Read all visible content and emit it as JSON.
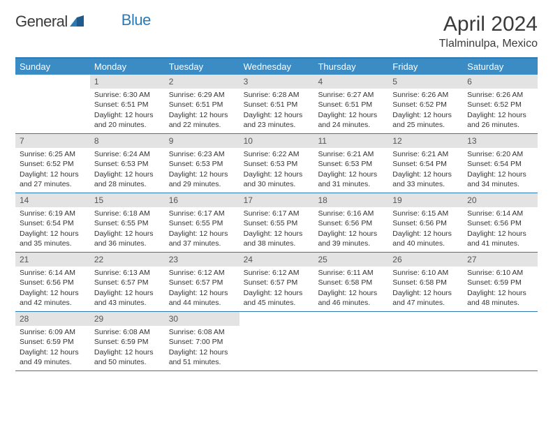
{
  "logo": {
    "word1": "General",
    "word2": "Blue"
  },
  "title": "April 2024",
  "location": "Tlalminulpa, Mexico",
  "colors": {
    "header_bg": "#3b8bc5",
    "border": "#2a7ab8",
    "daynum_bg": "#e3e3e3",
    "text": "#333333",
    "title": "#3a3a3a"
  },
  "dayNames": [
    "Sunday",
    "Monday",
    "Tuesday",
    "Wednesday",
    "Thursday",
    "Friday",
    "Saturday"
  ],
  "weeks": [
    [
      {
        "n": "",
        "sunrise": "",
        "sunset": "",
        "daylight": ""
      },
      {
        "n": "1",
        "sunrise": "Sunrise: 6:30 AM",
        "sunset": "Sunset: 6:51 PM",
        "daylight": "Daylight: 12 hours and 20 minutes."
      },
      {
        "n": "2",
        "sunrise": "Sunrise: 6:29 AM",
        "sunset": "Sunset: 6:51 PM",
        "daylight": "Daylight: 12 hours and 22 minutes."
      },
      {
        "n": "3",
        "sunrise": "Sunrise: 6:28 AM",
        "sunset": "Sunset: 6:51 PM",
        "daylight": "Daylight: 12 hours and 23 minutes."
      },
      {
        "n": "4",
        "sunrise": "Sunrise: 6:27 AM",
        "sunset": "Sunset: 6:51 PM",
        "daylight": "Daylight: 12 hours and 24 minutes."
      },
      {
        "n": "5",
        "sunrise": "Sunrise: 6:26 AM",
        "sunset": "Sunset: 6:52 PM",
        "daylight": "Daylight: 12 hours and 25 minutes."
      },
      {
        "n": "6",
        "sunrise": "Sunrise: 6:26 AM",
        "sunset": "Sunset: 6:52 PM",
        "daylight": "Daylight: 12 hours and 26 minutes."
      }
    ],
    [
      {
        "n": "7",
        "sunrise": "Sunrise: 6:25 AM",
        "sunset": "Sunset: 6:52 PM",
        "daylight": "Daylight: 12 hours and 27 minutes."
      },
      {
        "n": "8",
        "sunrise": "Sunrise: 6:24 AM",
        "sunset": "Sunset: 6:53 PM",
        "daylight": "Daylight: 12 hours and 28 minutes."
      },
      {
        "n": "9",
        "sunrise": "Sunrise: 6:23 AM",
        "sunset": "Sunset: 6:53 PM",
        "daylight": "Daylight: 12 hours and 29 minutes."
      },
      {
        "n": "10",
        "sunrise": "Sunrise: 6:22 AM",
        "sunset": "Sunset: 6:53 PM",
        "daylight": "Daylight: 12 hours and 30 minutes."
      },
      {
        "n": "11",
        "sunrise": "Sunrise: 6:21 AM",
        "sunset": "Sunset: 6:53 PM",
        "daylight": "Daylight: 12 hours and 31 minutes."
      },
      {
        "n": "12",
        "sunrise": "Sunrise: 6:21 AM",
        "sunset": "Sunset: 6:54 PM",
        "daylight": "Daylight: 12 hours and 33 minutes."
      },
      {
        "n": "13",
        "sunrise": "Sunrise: 6:20 AM",
        "sunset": "Sunset: 6:54 PM",
        "daylight": "Daylight: 12 hours and 34 minutes."
      }
    ],
    [
      {
        "n": "14",
        "sunrise": "Sunrise: 6:19 AM",
        "sunset": "Sunset: 6:54 PM",
        "daylight": "Daylight: 12 hours and 35 minutes."
      },
      {
        "n": "15",
        "sunrise": "Sunrise: 6:18 AM",
        "sunset": "Sunset: 6:55 PM",
        "daylight": "Daylight: 12 hours and 36 minutes."
      },
      {
        "n": "16",
        "sunrise": "Sunrise: 6:17 AM",
        "sunset": "Sunset: 6:55 PM",
        "daylight": "Daylight: 12 hours and 37 minutes."
      },
      {
        "n": "17",
        "sunrise": "Sunrise: 6:17 AM",
        "sunset": "Sunset: 6:55 PM",
        "daylight": "Daylight: 12 hours and 38 minutes."
      },
      {
        "n": "18",
        "sunrise": "Sunrise: 6:16 AM",
        "sunset": "Sunset: 6:56 PM",
        "daylight": "Daylight: 12 hours and 39 minutes."
      },
      {
        "n": "19",
        "sunrise": "Sunrise: 6:15 AM",
        "sunset": "Sunset: 6:56 PM",
        "daylight": "Daylight: 12 hours and 40 minutes."
      },
      {
        "n": "20",
        "sunrise": "Sunrise: 6:14 AM",
        "sunset": "Sunset: 6:56 PM",
        "daylight": "Daylight: 12 hours and 41 minutes."
      }
    ],
    [
      {
        "n": "21",
        "sunrise": "Sunrise: 6:14 AM",
        "sunset": "Sunset: 6:56 PM",
        "daylight": "Daylight: 12 hours and 42 minutes."
      },
      {
        "n": "22",
        "sunrise": "Sunrise: 6:13 AM",
        "sunset": "Sunset: 6:57 PM",
        "daylight": "Daylight: 12 hours and 43 minutes."
      },
      {
        "n": "23",
        "sunrise": "Sunrise: 6:12 AM",
        "sunset": "Sunset: 6:57 PM",
        "daylight": "Daylight: 12 hours and 44 minutes."
      },
      {
        "n": "24",
        "sunrise": "Sunrise: 6:12 AM",
        "sunset": "Sunset: 6:57 PM",
        "daylight": "Daylight: 12 hours and 45 minutes."
      },
      {
        "n": "25",
        "sunrise": "Sunrise: 6:11 AM",
        "sunset": "Sunset: 6:58 PM",
        "daylight": "Daylight: 12 hours and 46 minutes."
      },
      {
        "n": "26",
        "sunrise": "Sunrise: 6:10 AM",
        "sunset": "Sunset: 6:58 PM",
        "daylight": "Daylight: 12 hours and 47 minutes."
      },
      {
        "n": "27",
        "sunrise": "Sunrise: 6:10 AM",
        "sunset": "Sunset: 6:59 PM",
        "daylight": "Daylight: 12 hours and 48 minutes."
      }
    ],
    [
      {
        "n": "28",
        "sunrise": "Sunrise: 6:09 AM",
        "sunset": "Sunset: 6:59 PM",
        "daylight": "Daylight: 12 hours and 49 minutes."
      },
      {
        "n": "29",
        "sunrise": "Sunrise: 6:08 AM",
        "sunset": "Sunset: 6:59 PM",
        "daylight": "Daylight: 12 hours and 50 minutes."
      },
      {
        "n": "30",
        "sunrise": "Sunrise: 6:08 AM",
        "sunset": "Sunset: 7:00 PM",
        "daylight": "Daylight: 12 hours and 51 minutes."
      },
      {
        "n": "",
        "sunrise": "",
        "sunset": "",
        "daylight": ""
      },
      {
        "n": "",
        "sunrise": "",
        "sunset": "",
        "daylight": ""
      },
      {
        "n": "",
        "sunrise": "",
        "sunset": "",
        "daylight": ""
      },
      {
        "n": "",
        "sunrise": "",
        "sunset": "",
        "daylight": ""
      }
    ]
  ]
}
